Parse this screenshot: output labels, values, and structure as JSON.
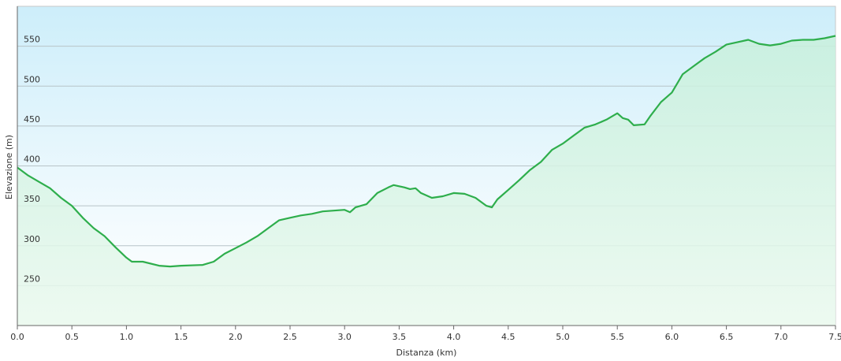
{
  "chart_data": {
    "type": "area",
    "x_label": "Distanza  (km)",
    "y_label": "Elevazione (m)",
    "color": "#2eae4c",
    "grid": true,
    "x": [
      0,
      0.1,
      0.2,
      0.3,
      0.4,
      0.5,
      0.6,
      0.7,
      0.8,
      0.9,
      1.0,
      1.05,
      1.15,
      1.3,
      1.4,
      1.5,
      1.7,
      1.8,
      1.9,
      2.0,
      2.1,
      2.2,
      2.3,
      2.4,
      2.5,
      2.6,
      2.7,
      2.8,
      2.9,
      3.0,
      3.05,
      3.1,
      3.2,
      3.3,
      3.4,
      3.45,
      3.55,
      3.6,
      3.65,
      3.7,
      3.8,
      3.9,
      4.0,
      4.1,
      4.2,
      4.3,
      4.35,
      4.4,
      4.5,
      4.6,
      4.7,
      4.8,
      4.9,
      5.0,
      5.1,
      5.2,
      5.3,
      5.4,
      5.5,
      5.55,
      5.6,
      5.65,
      5.75,
      5.8,
      5.9,
      6.0,
      6.1,
      6.2,
      6.3,
      6.4,
      6.5,
      6.6,
      6.7,
      6.8,
      6.9,
      7.0,
      7.1,
      7.2,
      7.3,
      7.4,
      7.5
    ],
    "values": [
      398,
      388,
      380,
      372,
      360,
      350,
      335,
      322,
      312,
      298,
      285,
      280,
      280,
      275,
      274,
      275,
      276,
      280,
      290,
      297,
      304,
      312,
      322,
      332,
      335,
      338,
      340,
      343,
      344,
      345,
      342,
      348,
      352,
      366,
      373,
      376,
      373,
      371,
      372,
      366,
      360,
      362,
      366,
      365,
      360,
      350,
      348,
      358,
      370,
      382,
      395,
      405,
      420,
      428,
      438,
      448,
      452,
      458,
      466,
      460,
      458,
      451,
      452,
      462,
      480,
      492,
      515,
      525,
      535,
      543,
      552,
      555,
      558,
      553,
      551,
      553,
      557,
      558,
      558,
      560,
      563
    ],
    "xlim": [
      0,
      7.5
    ],
    "ylim": [
      200,
      600
    ],
    "xticks": [
      {
        "value": 0,
        "label": "0.0"
      },
      0.5,
      {
        "value": 1,
        "label": "1.0"
      },
      1.5,
      {
        "value": 2,
        "label": "2.0"
      },
      2.5,
      {
        "value": 3,
        "label": "3.0"
      },
      3.5,
      {
        "value": 4,
        "label": "4.0"
      },
      4.5,
      {
        "value": 5,
        "label": "5.0"
      },
      5.5,
      {
        "value": 6,
        "label": "6.0"
      },
      6.5,
      {
        "value": 7,
        "label": "7.0"
      },
      7.5
    ],
    "yticks": [
      250,
      300,
      350,
      400,
      450,
      500,
      550
    ]
  }
}
